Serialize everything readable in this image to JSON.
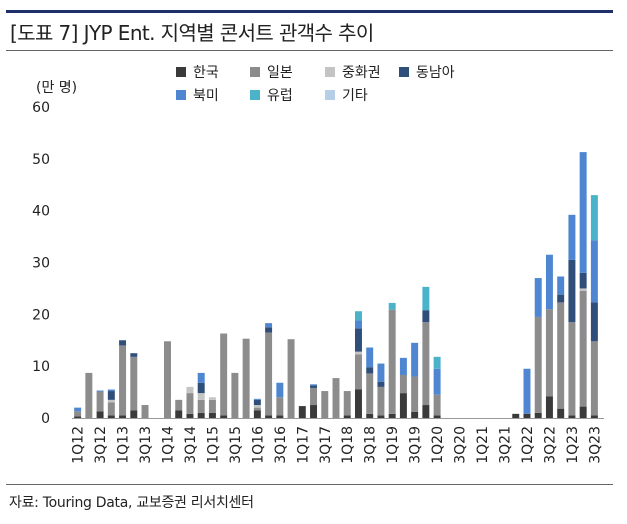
{
  "header": {
    "title": "[도표 7] JYP Ent. 지역별 콘서트 관객수 추이"
  },
  "footer": {
    "source": "자료: Touring Data, 교보증권 리서치센터"
  },
  "colors": {
    "한국": "#3a3a3a",
    "일본": "#8c8c8c",
    "중화권": "#c4c4c4",
    "동남아": "#2f4f7a",
    "북미": "#4f86d1",
    "유럽": "#4bb3c9",
    "기타": "#b7cfe6"
  },
  "chart_data": {
    "type": "bar",
    "stacked": true,
    "ylabel": "(만 명)",
    "ylim": [
      0,
      60
    ],
    "yticks": [
      0,
      10,
      20,
      30,
      40,
      50,
      60
    ],
    "legend_position": "top",
    "x_tick_labels": [
      "1Q12",
      "3Q12",
      "1Q13",
      "3Q13",
      "1Q14",
      "3Q14",
      "1Q15",
      "3Q15",
      "1Q16",
      "3Q16",
      "1Q17",
      "3Q17",
      "1Q18",
      "3Q18",
      "1Q19",
      "3Q19",
      "1Q20",
      "3Q20",
      "1Q21",
      "3Q21",
      "1Q22",
      "3Q22",
      "1Q23",
      "3Q23"
    ],
    "categories": [
      "1Q12",
      "2Q12",
      "3Q12",
      "4Q12",
      "1Q13",
      "2Q13",
      "3Q13",
      "4Q13",
      "1Q14",
      "2Q14",
      "3Q14",
      "4Q14",
      "1Q15",
      "2Q15",
      "3Q15",
      "4Q15",
      "1Q16",
      "2Q16",
      "3Q16",
      "4Q16",
      "1Q17",
      "2Q17",
      "3Q17",
      "4Q17",
      "1Q18",
      "2Q18",
      "3Q18",
      "4Q18",
      "1Q19",
      "2Q19",
      "3Q19",
      "4Q19",
      "1Q20",
      "2Q20",
      "3Q20",
      "4Q20",
      "1Q21",
      "2Q21",
      "3Q21",
      "4Q21",
      "1Q22",
      "2Q22",
      "3Q22",
      "4Q22",
      "1Q23",
      "2Q23",
      "3Q23"
    ],
    "series": [
      {
        "name": "한국",
        "values": [
          0.3,
          0,
          1.3,
          0.5,
          0.5,
          1.5,
          0,
          0,
          0,
          1.5,
          0.8,
          1.0,
          1.0,
          0.5,
          0,
          0,
          1.5,
          0.5,
          0.5,
          0,
          2.3,
          2.5,
          0,
          0,
          0.5,
          5.5,
          0.8,
          0.5,
          0.8,
          4.8,
          1.2,
          2.5,
          0.5,
          0,
          0,
          0,
          0,
          0,
          0,
          0.8,
          0.8,
          1.0,
          4.2,
          1.8,
          0.5,
          2.2,
          0.5
        ]
      },
      {
        "name": "일본",
        "values": [
          1.0,
          8.7,
          3.8,
          2.5,
          13.5,
          10.3,
          2.5,
          0,
          14.8,
          2.0,
          4.0,
          2.5,
          2.5,
          15.8,
          8.7,
          15.3,
          0.5,
          16.0,
          3.5,
          15.2,
          0,
          3.3,
          5.2,
          7.7,
          4.7,
          6.8,
          7.8,
          5.5,
          20.1,
          3.5,
          6.8,
          16.0,
          4.0,
          0,
          0,
          0,
          0,
          0,
          0,
          0,
          0,
          18.5,
          16.8,
          20.5,
          18.0,
          22.3,
          14.3
        ]
      },
      {
        "name": "중화권",
        "values": [
          0,
          0,
          0,
          0.5,
          0,
          0,
          0,
          0,
          0,
          0,
          1.2,
          1.3,
          0.5,
          0,
          0,
          0,
          0.5,
          0,
          0,
          0,
          0,
          0,
          0,
          0,
          0,
          0.5,
          0,
          0,
          0,
          0,
          0,
          0,
          0,
          0,
          0,
          0,
          0,
          0,
          0,
          0,
          0,
          0,
          0,
          0,
          0,
          0.5,
          0
        ]
      },
      {
        "name": "동남아",
        "values": [
          0,
          0,
          0,
          1.7,
          1.0,
          0.7,
          0,
          0,
          0,
          0,
          0,
          2.0,
          0,
          0,
          0,
          0,
          1.0,
          1.0,
          0,
          0,
          0,
          0.5,
          0,
          0,
          0,
          4.5,
          1.2,
          1.0,
          0,
          0,
          0,
          2.3,
          0,
          0,
          0,
          0,
          0,
          0,
          0,
          0,
          0,
          0,
          0,
          1.5,
          12.0,
          3.0,
          7.5
        ]
      },
      {
        "name": "북미",
        "values": [
          0.7,
          0,
          0.2,
          0.3,
          0,
          0,
          0,
          0,
          0,
          0,
          0,
          1.9,
          0,
          0,
          0,
          0,
          0.2,
          0.8,
          2.8,
          0,
          0,
          0.2,
          0,
          0,
          0,
          1.5,
          3.8,
          3.5,
          0,
          3.3,
          6.5,
          0,
          5.0,
          0,
          0,
          0,
          0,
          0,
          0,
          0,
          8.7,
          7.5,
          10.5,
          3.5,
          8.7,
          23.3,
          12.0
        ]
      },
      {
        "name": "유럽",
        "values": [
          0,
          0,
          0,
          0,
          0,
          0,
          0,
          0,
          0,
          0,
          0,
          0,
          0,
          0,
          0,
          0,
          0,
          0,
          0,
          0,
          0,
          0,
          0,
          0,
          0,
          1.8,
          0,
          0,
          1.3,
          0,
          0,
          4.5,
          2.3,
          0,
          0,
          0,
          0,
          0,
          0,
          0,
          0,
          0,
          0,
          0,
          0,
          0,
          8.7
        ]
      },
      {
        "name": "기타",
        "values": [
          0,
          0,
          0,
          0,
          0,
          0,
          0,
          0,
          0,
          0,
          0,
          0,
          0,
          0,
          0,
          0,
          0,
          0,
          0,
          0,
          0,
          0,
          0,
          0,
          0,
          0,
          0,
          0,
          0,
          0,
          0,
          0,
          0,
          0,
          0,
          0,
          0,
          0,
          0,
          0,
          0,
          0,
          0,
          0,
          0,
          0,
          0
        ]
      }
    ]
  }
}
